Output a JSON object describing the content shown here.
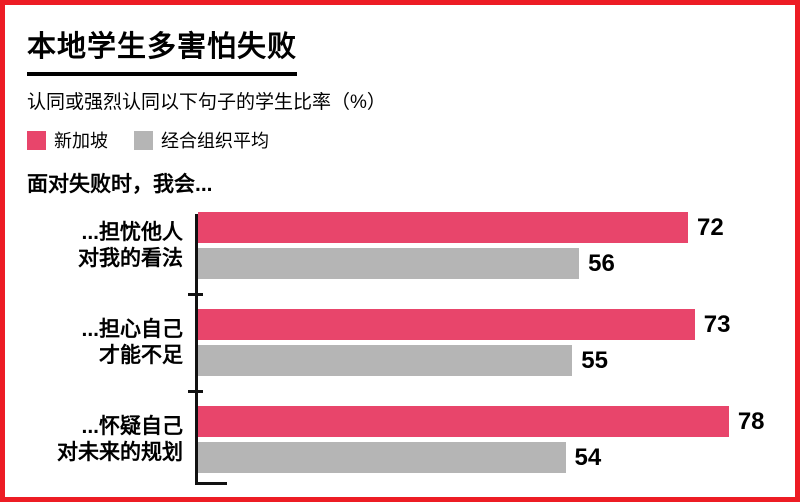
{
  "frame": {
    "border_color": "#ed1c24",
    "background": "#ffffff"
  },
  "header": {
    "title": "本地学生多害怕失败",
    "subtitle": "认同或强烈认同以下句子的学生比率（%）"
  },
  "legend": {
    "items": [
      {
        "label": "新加坡",
        "color": "#e8456b"
      },
      {
        "label": "经合组织平均",
        "color": "#b5b5b5"
      }
    ]
  },
  "prompt": "面对失败时，我会...",
  "chart_data": {
    "type": "bar",
    "orientation": "horizontal",
    "title": "本地学生多害怕失败",
    "subtitle": "认同或强烈认同以下句子的学生比率（%）",
    "group_intro": "面对失败时，我会...",
    "categories": [
      "...担忧他人\n对我的看法",
      "...担心自己\n才能不足",
      "...怀疑自己\n对未来的规划"
    ],
    "series": [
      {
        "name": "新加坡",
        "color": "#e8456b",
        "values": [
          72,
          73,
          78
        ]
      },
      {
        "name": "经合组织平均",
        "color": "#b5b5b5",
        "values": [
          56,
          55,
          54
        ]
      }
    ],
    "xlim": [
      0,
      80
    ],
    "value_labels": true,
    "legend_position": "top",
    "grid": false
  }
}
